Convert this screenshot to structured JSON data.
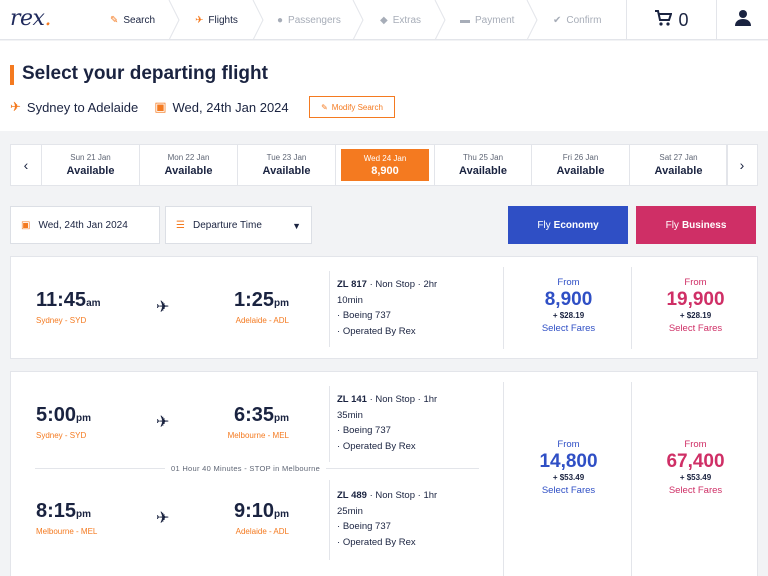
{
  "nav": {
    "logo_text": "rex",
    "logo_dot": ".",
    "steps": [
      {
        "label": "Search",
        "icon": "pencil-icon",
        "done": true
      },
      {
        "label": "Flights",
        "icon": "plane-icon",
        "done": true
      },
      {
        "label": "Passengers",
        "icon": "person-icon",
        "done": false
      },
      {
        "label": "Extras",
        "icon": "tag-icon",
        "done": false
      },
      {
        "label": "Payment",
        "icon": "card-icon",
        "done": false
      },
      {
        "label": "Confirm",
        "icon": "check-icon",
        "done": false
      }
    ],
    "cart_count": "0",
    "accent": "#f47a20"
  },
  "header": {
    "title": "Select your departing flight",
    "route": "Sydney to Adelaide",
    "date": "Wed, 24th Jan 2024",
    "modify_label": "Modify Search"
  },
  "date_strip": {
    "days": [
      {
        "label": "Sun 21 Jan",
        "status": "Available"
      },
      {
        "label": "Mon 22 Jan",
        "status": "Available"
      },
      {
        "label": "Tue 23 Jan",
        "status": "Available"
      },
      {
        "label": "Wed 24 Jan",
        "status": "8,900",
        "active": true
      },
      {
        "label": "Thu 25 Jan",
        "status": "Available"
      },
      {
        "label": "Fri 26 Jan",
        "status": "Available"
      },
      {
        "label": "Sat 27 Jan",
        "status": "Available"
      }
    ]
  },
  "filters": {
    "date": "Wed, 24th Jan 2024",
    "sort": "Departure Time",
    "economy_prefix": "Fly",
    "economy_label": "Economy",
    "business_prefix": "Fly",
    "business_label": "Business",
    "economy_color": "#2f4fc5",
    "business_color": "#cf2f66"
  },
  "flights": [
    {
      "segments": [
        {
          "dep_time": "11:45",
          "dep_ampm": "am",
          "dep_place": "Sydney - SYD",
          "arr_time": "1:25",
          "arr_ampm": "pm",
          "arr_place": "Adelaide - ADL",
          "flight_no": "ZL 817",
          "stops": "Non Stop",
          "duration_a": "2hr",
          "duration_b": "10min",
          "aircraft": "Boeing 737",
          "operator": "Operated By Rex"
        }
      ],
      "economy": {
        "from": "From",
        "price": "8,900",
        "tax": "+ $28.19",
        "select": "Select Fares"
      },
      "business": {
        "from": "From",
        "price": "19,900",
        "tax": "+ $28.19",
        "select": "Select Fares"
      }
    },
    {
      "segments": [
        {
          "dep_time": "5:00",
          "dep_ampm": "pm",
          "dep_place": "Sydney - SYD",
          "arr_time": "6:35",
          "arr_ampm": "pm",
          "arr_place": "Melbourne - MEL",
          "flight_no": "ZL 141",
          "stops": "Non Stop",
          "duration_a": "1hr",
          "duration_b": "35min",
          "aircraft": "Boeing 737",
          "operator": "Operated By Rex"
        },
        {
          "dep_time": "8:15",
          "dep_ampm": "pm",
          "dep_place": "Melbourne - MEL",
          "arr_time": "9:10",
          "arr_ampm": "pm",
          "arr_place": "Adelaide - ADL",
          "flight_no": "ZL 489",
          "stops": "Non Stop",
          "duration_a": "1hr",
          "duration_b": "25min",
          "aircraft": "Boeing 737",
          "operator": "Operated By Rex"
        }
      ],
      "stopover": "01 Hour 40 Minutes - STOP in Melbourne",
      "economy": {
        "from": "From",
        "price": "14,800",
        "tax": "+ $53.49",
        "select": "Select Fares"
      },
      "business": {
        "from": "From",
        "price": "67,400",
        "tax": "+ $53.49",
        "select": "Select Fares"
      }
    }
  ]
}
